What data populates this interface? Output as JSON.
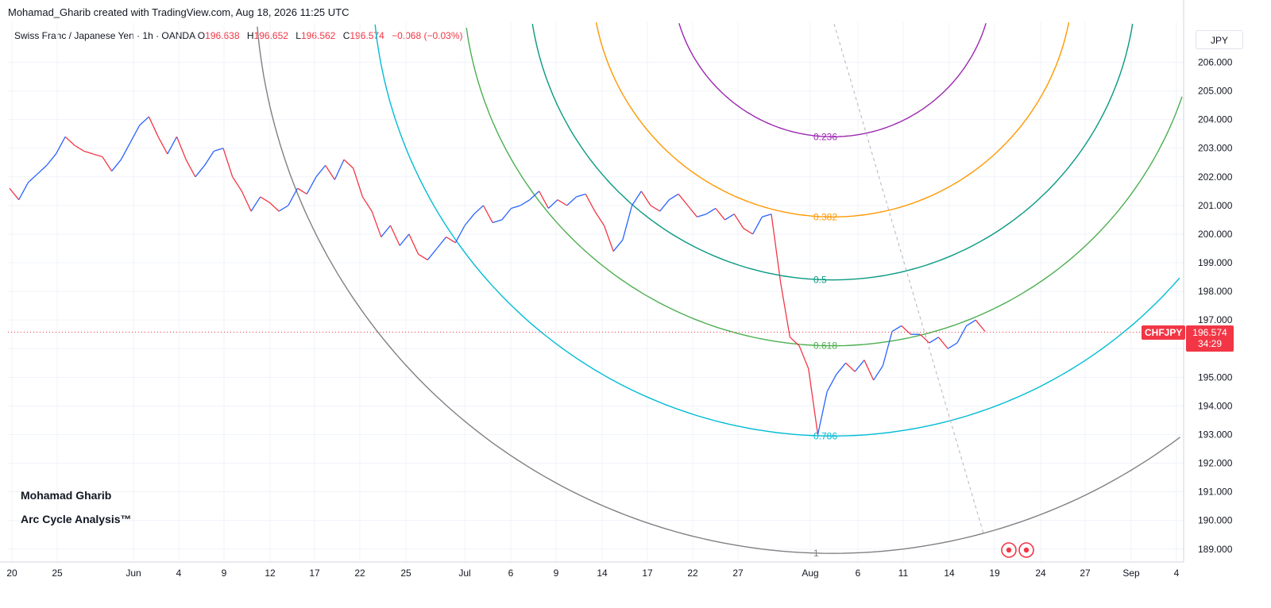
{
  "header": {
    "text": "Mohamad_Gharib created with TradingView.com, Aug 18, 2026 11:25 UTC"
  },
  "legend": {
    "symbol": "Swiss Franc / Japanese Yen · 1h · OANDA",
    "o_label": "O",
    "o_value": "196.638",
    "h_label": "H",
    "h_value": "196.652",
    "l_label": "L",
    "l_value": "196.562",
    "c_label": "C",
    "c_value": "196.574",
    "change": "−0.068 (−0.03%)"
  },
  "axis": {
    "currency": "JPY"
  },
  "price_tag": {
    "symbol": "CHFJPY",
    "price": "196.574",
    "countdown": "34:29"
  },
  "watermark": {
    "line1": "Mohamad Gharib",
    "line2": "Arc Cycle Analysis™"
  },
  "colors": {
    "up": "#2962ff",
    "down": "#f23645",
    "arc_0236": "#9c27b0",
    "arc_0382": "#ff9800",
    "arc_05": "#089981",
    "arc_0618": "#4caf50",
    "arc_0786": "#00bcd4",
    "arc_1": "#808080"
  },
  "chart_data": {
    "type": "line",
    "x_ticks": [
      "20",
      "25",
      "Jun",
      "4",
      "9",
      "12",
      "17",
      "22",
      "25",
      "Jul",
      "6",
      "9",
      "14",
      "17",
      "22",
      "27",
      "Aug",
      "6",
      "11",
      "14",
      "19",
      "24",
      "27",
      "Sep",
      "4"
    ],
    "y_ticks": [
      189,
      190,
      191,
      192,
      193,
      194,
      195,
      196,
      197,
      198,
      199,
      200,
      201,
      202,
      203,
      204,
      205,
      206
    ],
    "ylim": [
      188.55,
      207.4
    ],
    "last_price": 196.574,
    "series": [
      {
        "values": [
          201.6,
          201.2,
          201.8,
          202.1,
          202.4,
          202.8,
          203.4,
          203.1,
          202.9,
          202.8,
          202.7,
          202.2,
          202.6,
          203.2,
          203.8,
          204.1,
          203.4,
          202.8,
          203.4,
          202.6,
          202.0,
          202.4,
          202.9,
          203.0,
          202.0,
          201.5,
          200.8,
          201.3,
          201.1,
          200.8,
          201.0,
          201.6,
          201.4,
          202.0,
          202.4,
          201.9,
          202.6,
          202.3,
          201.3,
          200.8,
          199.9,
          200.3,
          199.6,
          200.0,
          199.3,
          199.1,
          199.5,
          199.9,
          199.7,
          200.3,
          200.7,
          201.0,
          200.4,
          200.5,
          200.9,
          201.0,
          201.2,
          201.5,
          200.9,
          201.2,
          201.0,
          201.3,
          201.4,
          200.8,
          200.3,
          199.4,
          199.8,
          201.0,
          201.5,
          201.0,
          200.8,
          201.2,
          201.4,
          201.0,
          200.6,
          200.7,
          200.9,
          200.5,
          200.7,
          200.2,
          200.0,
          200.6,
          200.7,
          198.3,
          196.4,
          196.1,
          195.3,
          193.0,
          194.5,
          195.1,
          195.5,
          195.2,
          195.6,
          194.9,
          195.4,
          196.6,
          196.8,
          196.5,
          196.5,
          196.2,
          196.4,
          196.0,
          196.2,
          196.8,
          197.0,
          196.6
        ]
      }
    ],
    "fib_arcs": [
      {
        "level": "0.236",
        "radius": 5.6
      },
      {
        "level": "0.382",
        "radius": 8.2
      },
      {
        "level": "0.5",
        "radius": 10.3
      },
      {
        "level": "0.618",
        "radius": 12.4
      },
      {
        "level": "0.786",
        "radius": 15.3
      },
      {
        "level": "1",
        "radius": 19.2
      }
    ],
    "grid": true
  }
}
